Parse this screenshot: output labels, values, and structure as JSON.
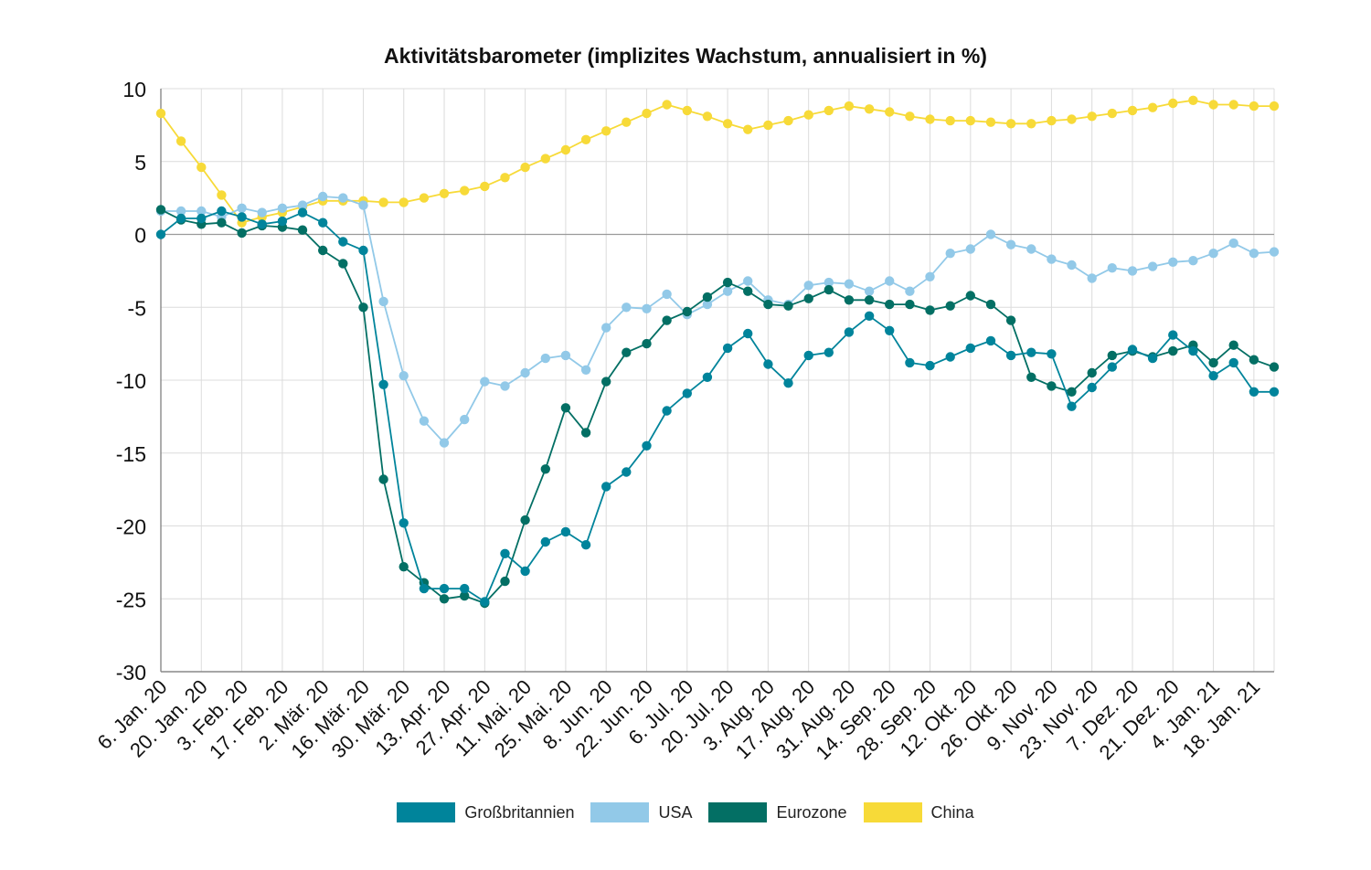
{
  "chart_data": {
    "type": "line",
    "title": "Aktivitätsbarometer (implizites Wachstum, annualisiert in %)",
    "xlabel": "",
    "ylabel": "",
    "ylim": [
      -30,
      10
    ],
    "yticks": [
      10,
      5,
      0,
      -5,
      -10,
      -15,
      -20,
      -25,
      -30
    ],
    "grid": true,
    "legend_position": "bottom",
    "x_tick_labels": [
      "6. Jan. 20",
      "20. Jan. 20",
      "3. Feb. 20",
      "17. Feb. 20",
      "2. Mär. 20",
      "16. Mär. 20",
      "30. Mär. 20",
      "13. Apr. 20",
      "27. Apr. 20",
      "11. Mai. 20",
      "25. Mai. 20",
      "8. Jun. 20",
      "22. Jun. 20",
      "6. Jul. 20",
      "20. Jul. 20",
      "3. Aug. 20",
      "17. Aug. 20",
      "31. Aug. 20",
      "14. Sep. 20",
      "28. Sep. 20",
      "12. Okt. 20",
      "26. Okt. 20",
      "9. Nov. 20",
      "23. Nov. 20",
      "7. Dez. 20",
      "21. Dez. 20",
      "4. Jan. 21",
      "18. Jan. 21"
    ],
    "series": [
      {
        "name": "Großbritannien",
        "color": "#00849b",
        "values": [
          0.0,
          1.1,
          1.1,
          1.6,
          1.2,
          0.7,
          0.9,
          1.5,
          0.8,
          -0.5,
          -1.1,
          -10.3,
          -19.8,
          -24.3,
          -24.3,
          -24.3,
          -25.2,
          -21.9,
          -23.1,
          -21.1,
          -20.4,
          -21.3,
          -17.3,
          -16.3,
          -14.5,
          -12.1,
          -10.9,
          -9.8,
          -7.8,
          -6.8,
          -8.9,
          -10.2,
          -8.3,
          -8.1,
          -6.7,
          -5.6,
          -6.6,
          -8.8,
          -9.0,
          -8.4,
          -7.8,
          -7.3,
          -8.3,
          -8.1,
          -8.2,
          -11.8,
          -10.5,
          -9.1,
          -7.9,
          -8.5,
          -6.9,
          -8.0,
          -9.7,
          -8.8,
          -10.8,
          -10.8
        ]
      },
      {
        "name": "USA",
        "color": "#92c9e8",
        "values": [
          1.6,
          1.6,
          1.6,
          1.2,
          1.8,
          1.5,
          1.8,
          2.0,
          2.6,
          2.5,
          2.0,
          -4.6,
          -9.7,
          -12.8,
          -14.3,
          -12.7,
          -10.1,
          -10.4,
          -9.5,
          -8.5,
          -8.3,
          -9.3,
          -6.4,
          -5.0,
          -5.1,
          -4.1,
          -5.5,
          -4.8,
          -3.9,
          -3.2,
          -4.5,
          -4.8,
          -3.5,
          -3.3,
          -3.4,
          -3.9,
          -3.2,
          -3.9,
          -2.9,
          -1.3,
          -1.0,
          0.0,
          -0.7,
          -1.0,
          -1.7,
          -2.1,
          -3.0,
          -2.3,
          -2.5,
          -2.2,
          -1.9,
          -1.8,
          -1.3,
          -0.6,
          -1.3,
          -1.2
        ]
      },
      {
        "name": "Eurozone",
        "color": "#036f64",
        "values": [
          1.7,
          1.0,
          0.7,
          0.8,
          0.1,
          0.6,
          0.5,
          0.3,
          -1.1,
          -2.0,
          -5.0,
          -16.8,
          -22.8,
          -23.9,
          -25.0,
          -24.8,
          -25.3,
          -23.8,
          -19.6,
          -16.1,
          -11.9,
          -13.6,
          -10.1,
          -8.1,
          -7.5,
          -5.9,
          -5.3,
          -4.3,
          -3.3,
          -3.9,
          -4.8,
          -4.9,
          -4.4,
          -3.8,
          -4.5,
          -4.5,
          -4.8,
          -4.8,
          -5.2,
          -4.9,
          -4.2,
          -4.8,
          -5.9,
          -9.8,
          -10.4,
          -10.8,
          -9.5,
          -8.3,
          -8.0,
          -8.4,
          -8.0,
          -7.6,
          -8.8,
          -7.6,
          -8.6,
          -9.1
        ]
      },
      {
        "name": "China",
        "color": "#f7da38",
        "values": [
          8.3,
          6.4,
          4.6,
          2.7,
          0.8,
          1.2,
          1.5,
          1.9,
          2.3,
          2.3,
          2.3,
          2.2,
          2.2,
          2.5,
          2.8,
          3.0,
          3.3,
          3.9,
          4.6,
          5.2,
          5.8,
          6.5,
          7.1,
          7.7,
          8.3,
          8.9,
          8.5,
          8.1,
          7.6,
          7.2,
          7.5,
          7.8,
          8.2,
          8.5,
          8.8,
          8.6,
          8.4,
          8.1,
          7.9,
          7.8,
          7.8,
          7.7,
          7.6,
          7.6,
          7.8,
          7.9,
          8.1,
          8.3,
          8.5,
          8.7,
          9.0,
          9.2,
          8.9,
          8.9,
          8.8,
          8.8
        ]
      }
    ]
  }
}
